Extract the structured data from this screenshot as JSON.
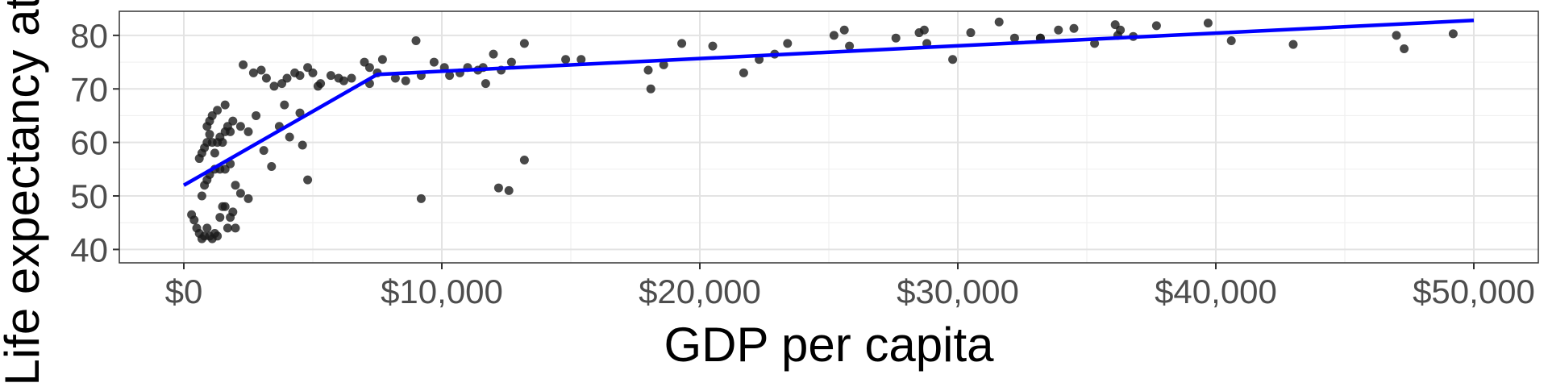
{
  "chart_data": {
    "type": "scatter",
    "title": "",
    "xlabel": "GDP per capita",
    "ylabel": "Life expectancy at birth",
    "xlim": [
      -2500,
      52500
    ],
    "ylim": [
      37.5,
      84.5
    ],
    "x_ticks": [
      0,
      10000,
      20000,
      30000,
      40000,
      50000
    ],
    "x_tick_labels": [
      "$0",
      "$10,000",
      "$20,000",
      "$30,000",
      "$40,000",
      "$50,000"
    ],
    "y_ticks": [
      40,
      50,
      60,
      70,
      80
    ],
    "y_tick_labels": [
      "40",
      "50",
      "60",
      "70",
      "80"
    ],
    "grid": true,
    "points_color": "#1a1a1a",
    "fit_color": "#0000ff",
    "fit_line": {
      "x": [
        0,
        7500,
        50000
      ],
      "y": [
        52,
        72.7,
        82.8
      ]
    },
    "points": {
      "x": [
        300,
        400,
        500,
        600,
        700,
        800,
        900,
        1000,
        1100,
        1200,
        1300,
        1400,
        1500,
        1600,
        1700,
        1800,
        1900,
        2000,
        600,
        700,
        800,
        900,
        1000,
        1100,
        1200,
        1300,
        1400,
        1500,
        1600,
        1700,
        1800,
        700,
        800,
        900,
        1000,
        1200,
        1400,
        1600,
        1800,
        2000,
        900,
        1000,
        1100,
        1300,
        1600,
        1900,
        2200,
        2500,
        2300,
        2700,
        3000,
        3200,
        3500,
        3800,
        4000,
        4300,
        4500,
        4800,
        5000,
        5300,
        5700,
        6000,
        6200,
        6500,
        7000,
        7200,
        7500,
        7700,
        7200,
        3100,
        3400,
        4500,
        4600,
        4800,
        2800,
        3700,
        4100,
        3900,
        2200,
        2500,
        5200,
        8200,
        8600,
        9000,
        9200,
        9700,
        10100,
        10300,
        10700,
        11000,
        11400,
        11700,
        12000,
        12300,
        12700,
        13200,
        9200,
        12200,
        12600,
        13200,
        11600,
        14800,
        15400,
        18000,
        18100,
        18600,
        19300,
        20500,
        21700,
        22300,
        22900,
        23400,
        25200,
        25600,
        25800,
        27600,
        28500,
        28700,
        28800,
        29800,
        30500,
        31600,
        32200,
        33200,
        33900,
        34500,
        35300,
        36100,
        36300,
        36800,
        37700,
        39700,
        40600,
        43000,
        47000,
        47300,
        49200,
        33200,
        36200
      ],
      "y": [
        46.5,
        45.5,
        44,
        43,
        42,
        42.5,
        44,
        42.5,
        42,
        43,
        42.5,
        46,
        48,
        48,
        44,
        46,
        47,
        44,
        57,
        58,
        59,
        60,
        61.5,
        60,
        58,
        60,
        61,
        60,
        62,
        63,
        62,
        50,
        52,
        53,
        54,
        55,
        55,
        55,
        56,
        52,
        63,
        64,
        65,
        66,
        67,
        64,
        63,
        62,
        74.5,
        73,
        73.5,
        72,
        70.5,
        71,
        72,
        73,
        72.5,
        74,
        73,
        71,
        72.5,
        72,
        71.5,
        72,
        75,
        74,
        73,
        75.5,
        71,
        58.5,
        55.5,
        65.5,
        59.5,
        53,
        65,
        63,
        61,
        67,
        50.5,
        49.5,
        70.5,
        72,
        71.5,
        79,
        72.5,
        75,
        74,
        72.5,
        73,
        74,
        73.5,
        71,
        76.5,
        73.5,
        75,
        78.5,
        49.5,
        51.5,
        51,
        56.7,
        74,
        75.5,
        75.5,
        73.5,
        70,
        74.5,
        78.5,
        78,
        73,
        75.5,
        76.5,
        78.5,
        80,
        81,
        78,
        79.5,
        80.5,
        81,
        78.5,
        75.5,
        80.5,
        82.5,
        79.5,
        79.5,
        81,
        81.3,
        78.5,
        82,
        81,
        79.8,
        81.8,
        82.3,
        79,
        78.3,
        80,
        77.5,
        80.3,
        79.5,
        80
      ]
    }
  }
}
